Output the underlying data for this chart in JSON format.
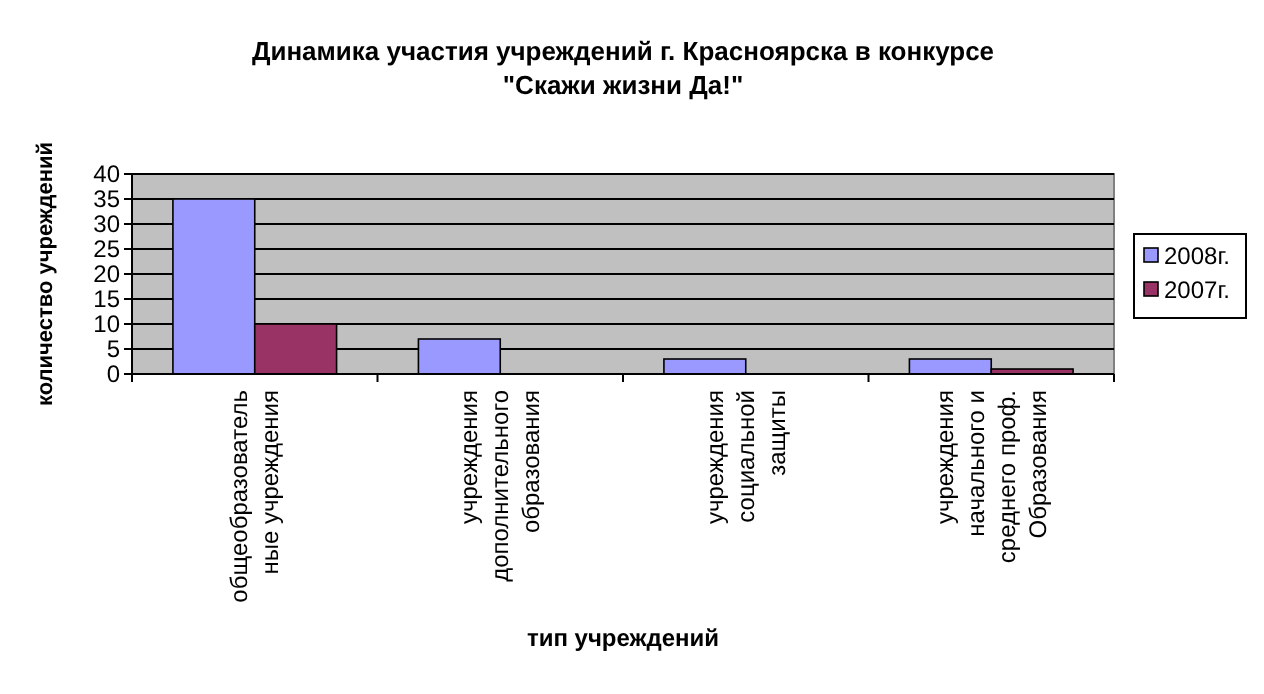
{
  "chart_data": {
    "type": "bar",
    "title": "Динамика участия учреждений г. Красноярска в конкурсе \"Скажи жизни Да!\"",
    "xlabel": "тип учреждений",
    "ylabel": "количество учреждений",
    "categories": [
      "общеобразовательные учреждения",
      "учреждения дополнительного образования",
      "учреждения социальной защиты",
      "учреждения начального и среднего проф. Образования"
    ],
    "series": [
      {
        "name": "2008г.",
        "color": "#9999ff",
        "values": [
          35,
          7,
          3,
          3
        ]
      },
      {
        "name": "2007г.",
        "color": "#993366",
        "values": [
          10,
          0,
          0,
          1
        ]
      }
    ],
    "ylim": [
      0,
      40
    ],
    "yticks": [
      0,
      5,
      10,
      15,
      20,
      25,
      30,
      35,
      40
    ],
    "grid": "y",
    "legend": "right"
  }
}
